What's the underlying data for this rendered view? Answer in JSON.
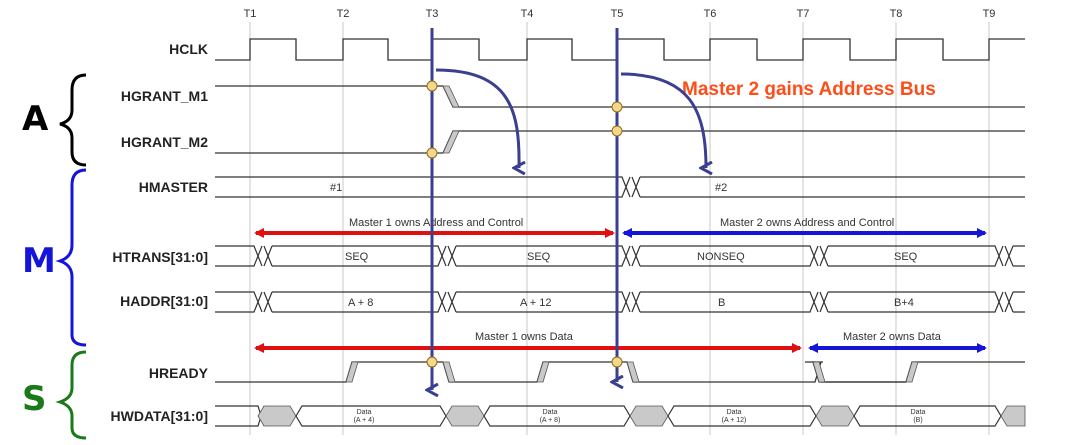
{
  "time_markers": [
    "T1",
    "T2",
    "T3",
    "T4",
    "T5",
    "T6",
    "T7",
    "T8",
    "T9"
  ],
  "groups": [
    {
      "letter": "A",
      "color": "#000000"
    },
    {
      "letter": "M",
      "color": "#1515d9"
    },
    {
      "letter": "S",
      "color": "#1a7a1a"
    }
  ],
  "signals": {
    "hclk": "HCLK",
    "hgrant_m1": "HGRANT_M1",
    "hgrant_m2": "HGRANT_M2",
    "hmaster": "HMASTER",
    "htrans": "HTRANS[31:0]",
    "haddr": "HADDR[31:0]",
    "hready": "HREADY",
    "hwdata": "HWDATA[31:0]"
  },
  "hmaster_values": [
    "#1",
    "#2"
  ],
  "htrans_values": [
    "SEQ",
    "SEQ",
    "NONSEQ",
    "SEQ"
  ],
  "haddr_values": [
    "A + 8",
    "A + 12",
    "B",
    "B+4"
  ],
  "hwdata_values": [
    {
      "line1": "Data",
      "line2": "(A + 4)"
    },
    {
      "line1": "Data",
      "line2": "(A + 8)"
    },
    {
      "line1": "Data",
      "line2": "(A + 12)"
    },
    {
      "line1": "Data",
      "line2": "(B)"
    }
  ],
  "annotations": {
    "m1_addr": "Master 1 owns Address and Control",
    "m2_addr": "Master 2 owns Address and Control",
    "m1_data": "Master 1 owns Data",
    "m2_data": "Master 2 owns Data",
    "headline": "Master 2 gains Address Bus"
  },
  "colors": {
    "m1_arrow": "#e01010",
    "m2_arrow": "#1515d9",
    "marker_line": "#3a3f8f",
    "dot_fill": "#f5d78a",
    "headline": "#ff4d1a"
  }
}
